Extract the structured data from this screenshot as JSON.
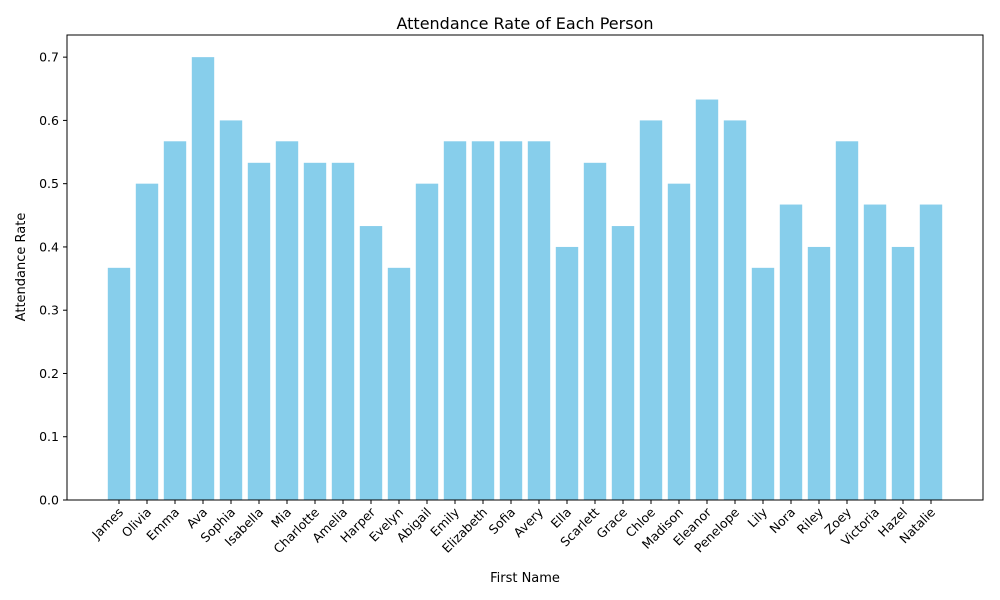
{
  "chart_data": {
    "type": "bar",
    "title": "Attendance Rate of Each Person",
    "xlabel": "First Name",
    "ylabel": "Attendance Rate",
    "ylim": [
      0,
      0.735
    ],
    "yticks": [
      "0.0",
      "0.1",
      "0.2",
      "0.3",
      "0.4",
      "0.5",
      "0.6",
      "0.7"
    ],
    "categories": [
      "James",
      "Olivia",
      "Emma",
      "Ava",
      "Sophia",
      "Isabella",
      "Mia",
      "Charlotte",
      "Amelia",
      "Harper",
      "Evelyn",
      "Abigail",
      "Emily",
      "Elizabeth",
      "Sofia",
      "Avery",
      "Ella",
      "Scarlett",
      "Grace",
      "Chloe",
      "Madison",
      "Eleanor",
      "Penelope",
      "Lily",
      "Nora",
      "Riley",
      "Zoey",
      "Victoria",
      "Hazel",
      "Natalie"
    ],
    "values": [
      0.367,
      0.5,
      0.567,
      0.7,
      0.6,
      0.533,
      0.567,
      0.533,
      0.533,
      0.433,
      0.367,
      0.5,
      0.567,
      0.567,
      0.567,
      0.567,
      0.4,
      0.533,
      0.433,
      0.6,
      0.5,
      0.633,
      0.6,
      0.367,
      0.467,
      0.4,
      0.567,
      0.467,
      0.4,
      0.467
    ],
    "bar_color": "#87CEEB",
    "grid": false,
    "legend": "none"
  }
}
